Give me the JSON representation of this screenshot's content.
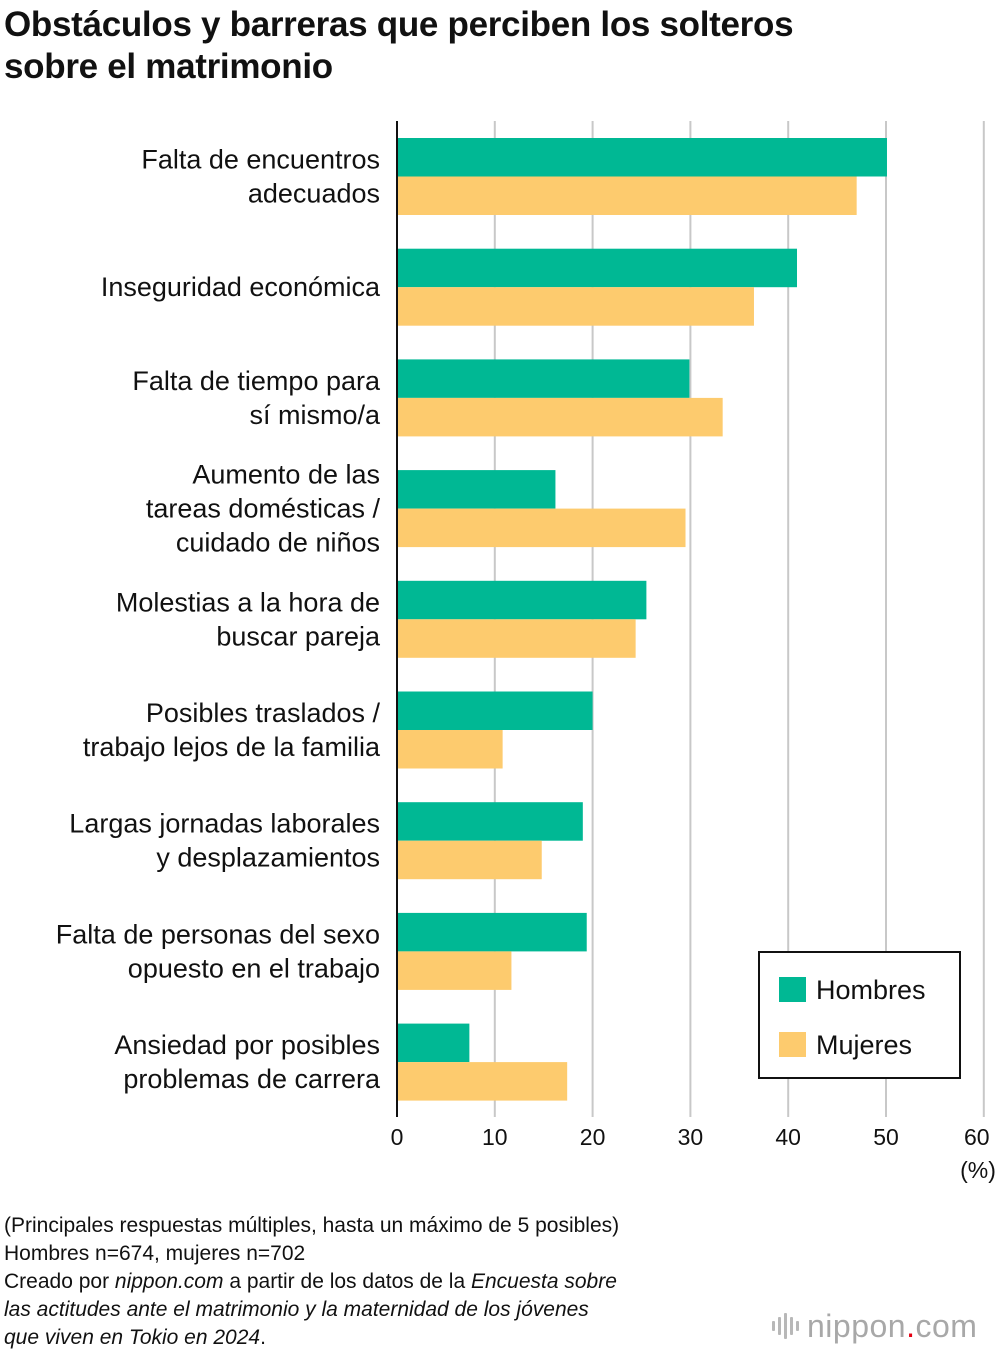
{
  "title_lines": [
    "Obstáculos y barreras que perciben los solteros",
    "sobre el matrimonio"
  ],
  "chart_data": {
    "type": "bar",
    "orientation": "horizontal",
    "title": "Obstáculos y barreras que perciben los solteros sobre el matrimonio",
    "unit_label": "(%)",
    "xlim": [
      0,
      60
    ],
    "x_ticks": [
      0,
      10,
      20,
      30,
      40,
      50,
      60
    ],
    "grid": true,
    "legend_position": "bottom-right",
    "categories": [
      [
        "Falta de encuentros",
        "adecuados"
      ],
      [
        "Inseguridad económica"
      ],
      [
        "Falta de tiempo para",
        "sí mismo/a"
      ],
      [
        "Aumento de las",
        "tareas domésticas /",
        "cuidado de niños"
      ],
      [
        "Molestias a la hora de",
        "buscar pareja"
      ],
      [
        "Posibles traslados /",
        "trabajo lejos de la familia"
      ],
      [
        "Largas jornadas laborales",
        "y desplazamientos"
      ],
      [
        "Falta de personas del sexo",
        "opuesto en el trabajo"
      ],
      [
        "Ansiedad por posibles",
        "problemas de carrera"
      ]
    ],
    "series": [
      {
        "name": "Hombres",
        "color": "#00b894",
        "values": [
          50.1,
          40.9,
          29.9,
          16.2,
          25.5,
          20.0,
          19.0,
          19.4,
          7.4
        ]
      },
      {
        "name": "Mujeres",
        "color": "#fdcb6e",
        "values": [
          47.0,
          36.5,
          33.3,
          29.5,
          24.4,
          10.8,
          14.8,
          11.7,
          17.4
        ]
      }
    ]
  },
  "notes": {
    "line1": "(Principales respuestas múltiples, hasta un máximo de 5 posibles)",
    "line2": "Hombres n=674, mujeres n=702",
    "line3_a": "Creado por ",
    "line3_b": "nippon.com",
    "line3_c": " a partir de los datos de la ",
    "line3_d": "Encuesta sobre",
    "line4": "las actitudes ante el matrimonio y la maternidad de los jóvenes",
    "line5_a": "que viven en Tokio en 2024",
    "line5_b": "."
  },
  "logo": {
    "name": "nippon",
    "dot": ".",
    "tld": "com"
  }
}
